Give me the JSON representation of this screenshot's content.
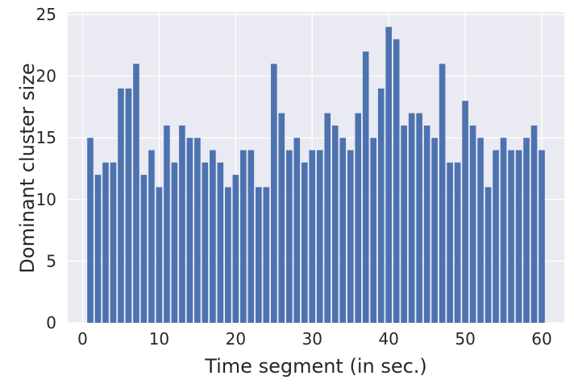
{
  "chart_data": {
    "type": "bar",
    "title": "",
    "xlabel": "Time segment (in sec.)",
    "ylabel": "Dominant cluster size",
    "x": [
      1,
      2,
      3,
      4,
      5,
      6,
      7,
      8,
      9,
      10,
      11,
      12,
      13,
      14,
      15,
      16,
      17,
      18,
      19,
      20,
      21,
      22,
      23,
      24,
      25,
      26,
      27,
      28,
      29,
      30,
      31,
      32,
      33,
      34,
      35,
      36,
      37,
      38,
      39,
      40,
      41,
      42,
      43,
      44,
      45,
      46,
      47,
      48,
      49,
      50,
      51,
      52,
      53,
      54,
      55,
      56,
      57,
      58,
      59,
      60
    ],
    "values": [
      15,
      12,
      13,
      13,
      19,
      19,
      21,
      12,
      14,
      11,
      16,
      13,
      16,
      15,
      15,
      13,
      14,
      13,
      11,
      12,
      14,
      14,
      11,
      11,
      21,
      17,
      14,
      15,
      13,
      14,
      14,
      17,
      16,
      15,
      14,
      17,
      22,
      15,
      19,
      24,
      23,
      16,
      17,
      17,
      16,
      15,
      21,
      13,
      13,
      18,
      16,
      15,
      11,
      14,
      15,
      14,
      14,
      15,
      16,
      14
    ],
    "xlim": [
      -1.95,
      62.95
    ],
    "ylim": [
      0,
      25.2
    ],
    "xticks": [
      0,
      10,
      20,
      30,
      40,
      50,
      60
    ],
    "xtick_labels": [
      "0",
      "10",
      "20",
      "30",
      "40",
      "50",
      "60"
    ],
    "yticks": [
      0,
      5,
      10,
      15,
      20,
      25
    ],
    "ytick_labels": [
      "0",
      "5",
      "10",
      "15",
      "20",
      "25"
    ],
    "grid": true,
    "colors": {
      "bar": "#4c72b0",
      "plot_background": "#eaeaf2",
      "grid": "#ffffff",
      "text": "#262626"
    }
  }
}
